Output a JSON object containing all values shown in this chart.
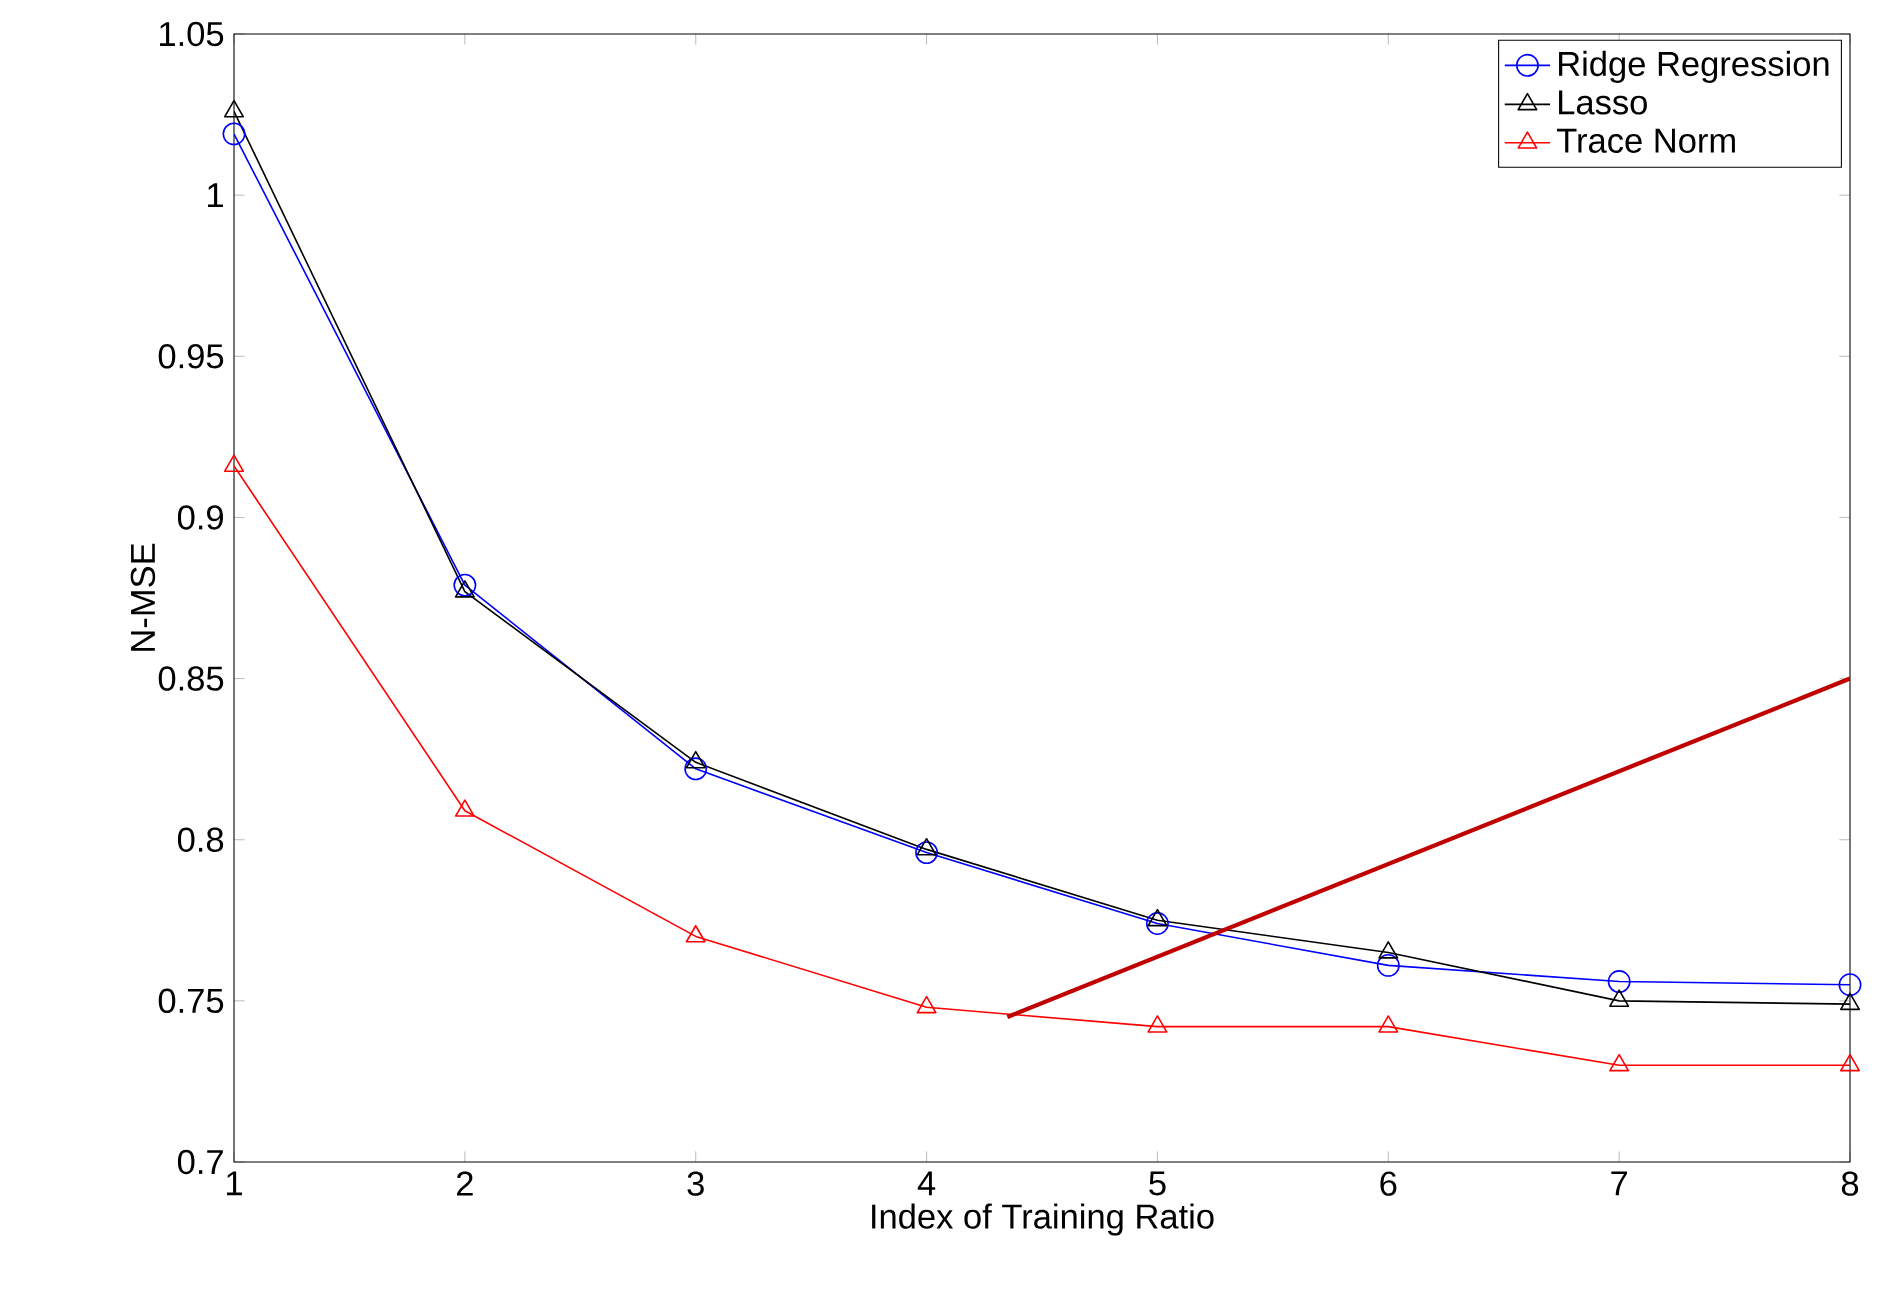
{
  "chart_data": {
    "type": "line",
    "xlabel": "Index of Training Ratio",
    "ylabel": "N-MSE",
    "x": [
      1,
      2,
      3,
      4,
      5,
      6,
      7,
      8
    ],
    "series": [
      {
        "name": "Ridge Regression",
        "color": "#0000ff",
        "marker": "circle",
        "values": [
          1.019,
          0.879,
          0.822,
          0.796,
          0.774,
          0.761,
          0.756,
          0.755
        ]
      },
      {
        "name": "Lasso",
        "color": "#000000",
        "marker": "triangle_down",
        "values": [
          1.026,
          0.877,
          0.824,
          0.797,
          0.775,
          0.765,
          0.75,
          0.749
        ]
      },
      {
        "name": "Trace Norm",
        "color": "#ff0000",
        "marker": "triangle",
        "values": [
          0.916,
          0.809,
          0.77,
          0.748,
          0.742,
          0.742,
          0.73,
          0.73
        ]
      },
      {
        "color": "#c00000",
        "marker": "none",
        "x": [
          4.35,
          8
        ],
        "values": [
          0.745,
          0.85
        ]
      }
    ],
    "xlim": [
      1,
      8
    ],
    "ylim": [
      0.7,
      1.05
    ],
    "xticks": [
      1,
      2,
      3,
      4,
      5,
      6,
      7,
      8
    ],
    "yticks": [
      0.7,
      0.75,
      0.8,
      0.85,
      0.9,
      0.95,
      1,
      1.05
    ],
    "grid": false,
    "legend": "top right"
  }
}
